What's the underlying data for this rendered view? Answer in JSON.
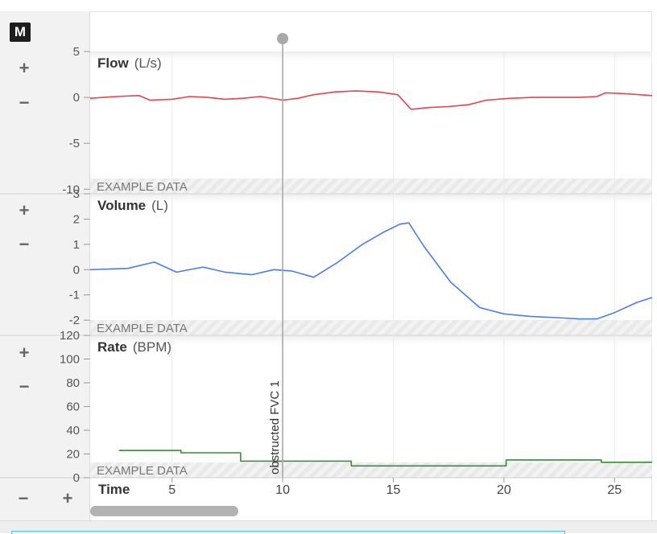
{
  "app": {
    "logo_letter": "M"
  },
  "controls": {
    "zoom_in_label": "+",
    "zoom_out_label": "−",
    "time_zoom_out_label": "−",
    "time_zoom_in_label": "+"
  },
  "marker": {
    "label": "obstructed FVC 1",
    "time": 10
  },
  "watermark": "EXAMPLE DATA",
  "colors": {
    "flow": "#e0454f",
    "volume": "#4d7be8",
    "rate": "#3a8a3a",
    "marker": "#a9a9a9"
  },
  "chart_data": {
    "type": "line",
    "x_axis": {
      "label": "Time",
      "range": [
        1.3,
        26.7
      ],
      "ticks": [
        5,
        10,
        15,
        20,
        25
      ]
    },
    "panels": [
      {
        "name": "Flow",
        "unit": "(L/s)",
        "ylim": [
          -10.5,
          5
        ],
        "ticks": [
          5,
          0,
          -5,
          -10
        ],
        "tick_labels": [
          "5",
          "0",
          "-5",
          "-10"
        ],
        "series": [
          {
            "x": [
              1.3,
              2.5,
              3.5,
              4.0,
              5.0,
              5.8,
              6.6,
              7.4,
              8.2,
              9.0,
              10.0,
              10.7,
              11.4,
              12.4,
              13.3,
              14.3,
              15.2,
              15.8,
              16.6,
              17.5,
              18.4,
              19.2,
              20.3,
              21.3,
              22.3,
              23.4,
              24.2,
              24.6,
              25.5,
              26.7
            ],
            "y": [
              -0.1,
              0.1,
              0.2,
              -0.3,
              -0.2,
              0.1,
              0.0,
              -0.2,
              -0.1,
              0.1,
              -0.3,
              -0.1,
              0.3,
              0.6,
              0.7,
              0.6,
              0.3,
              -1.3,
              -1.1,
              -1.0,
              -0.8,
              -0.3,
              -0.1,
              0.0,
              0.0,
              0.0,
              0.1,
              0.5,
              0.4,
              0.2
            ]
          }
        ]
      },
      {
        "name": "Volume",
        "unit": "(L)",
        "ylim": [
          -2.6,
          3
        ],
        "ticks": [
          3,
          2,
          1,
          0,
          -1,
          -2
        ],
        "tick_labels": [
          "3",
          "2",
          "1",
          "0",
          "-1",
          "-2"
        ],
        "series": [
          {
            "x": [
              1.3,
              3.0,
              4.2,
              5.2,
              6.4,
              7.4,
              8.6,
              9.6,
              10.4,
              11.4,
              12.5,
              13.6,
              14.6,
              15.3,
              15.7,
              16.4,
              17.6,
              18.9,
              20.0,
              21.2,
              22.4,
              23.4,
              24.2,
              25.0,
              26.0,
              26.7
            ],
            "y": [
              0.0,
              0.05,
              0.3,
              -0.1,
              0.1,
              -0.1,
              -0.2,
              0.0,
              -0.05,
              -0.3,
              0.3,
              1.0,
              1.5,
              1.8,
              1.85,
              0.9,
              -0.5,
              -1.5,
              -1.75,
              -1.85,
              -1.9,
              -1.95,
              -1.95,
              -1.7,
              -1.3,
              -1.1
            ]
          }
        ]
      },
      {
        "name": "Rate",
        "unit": "(BPM)",
        "ylim": [
          0,
          120
        ],
        "ticks": [
          120,
          100,
          80,
          60,
          40,
          20,
          0
        ],
        "tick_labels": [
          "120",
          "100",
          "80",
          "60",
          "40",
          "20",
          "0"
        ],
        "series": [
          {
            "x": [
              2.6,
              5.4,
              5.4,
              8.1,
              8.1,
              13.1,
              13.1,
              20.1,
              20.1,
              24.4,
              24.4,
              26.7
            ],
            "y": [
              23,
              23,
              21,
              21,
              14,
              14,
              10,
              10,
              15,
              15,
              13,
              13
            ]
          }
        ]
      }
    ]
  }
}
